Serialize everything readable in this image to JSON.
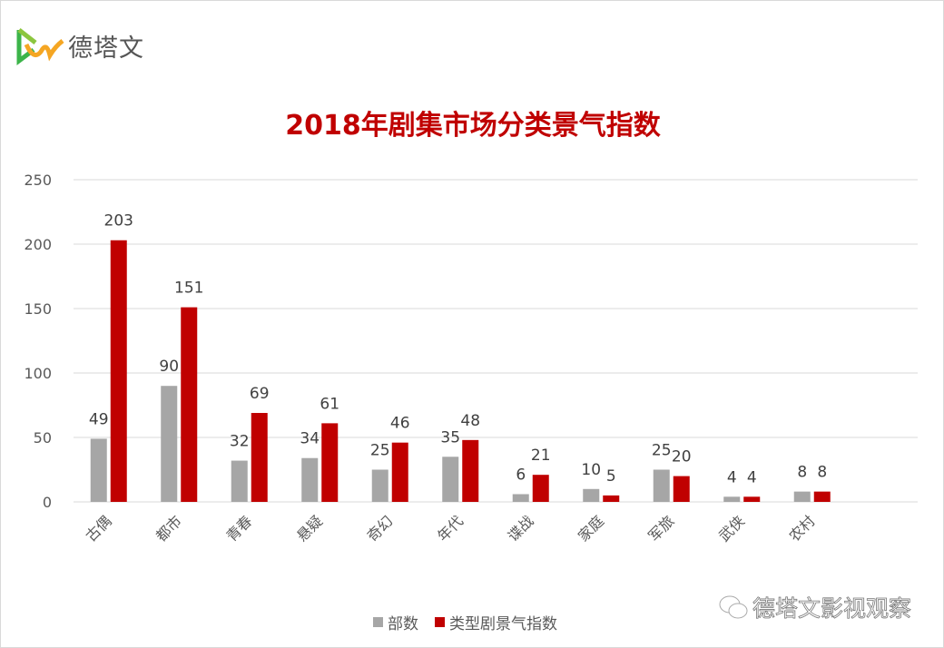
{
  "logo": {
    "text": "德塔文"
  },
  "chart_data": {
    "type": "bar",
    "title": "2018年剧集市场分类景气指数",
    "categories": [
      "古偶",
      "都市",
      "青春",
      "悬疑",
      "奇幻",
      "年代",
      "谍战",
      "家庭",
      "军旅",
      "武侠",
      "农村"
    ],
    "series": [
      {
        "name": "部数",
        "color": "#a6a6a6",
        "values": [
          49,
          90,
          32,
          34,
          25,
          35,
          6,
          10,
          25,
          4,
          8
        ]
      },
      {
        "name": "类型剧景气指数",
        "color": "#c00000",
        "values": [
          203,
          151,
          69,
          61,
          46,
          48,
          21,
          5,
          20,
          4,
          8
        ]
      }
    ],
    "ylim": [
      0,
      250
    ],
    "yticks": [
      0,
      50,
      100,
      150,
      200,
      250
    ],
    "grid": true,
    "data_labels": true,
    "legend_position": "bottom"
  },
  "watermark": {
    "text": "德塔文影视观察"
  }
}
